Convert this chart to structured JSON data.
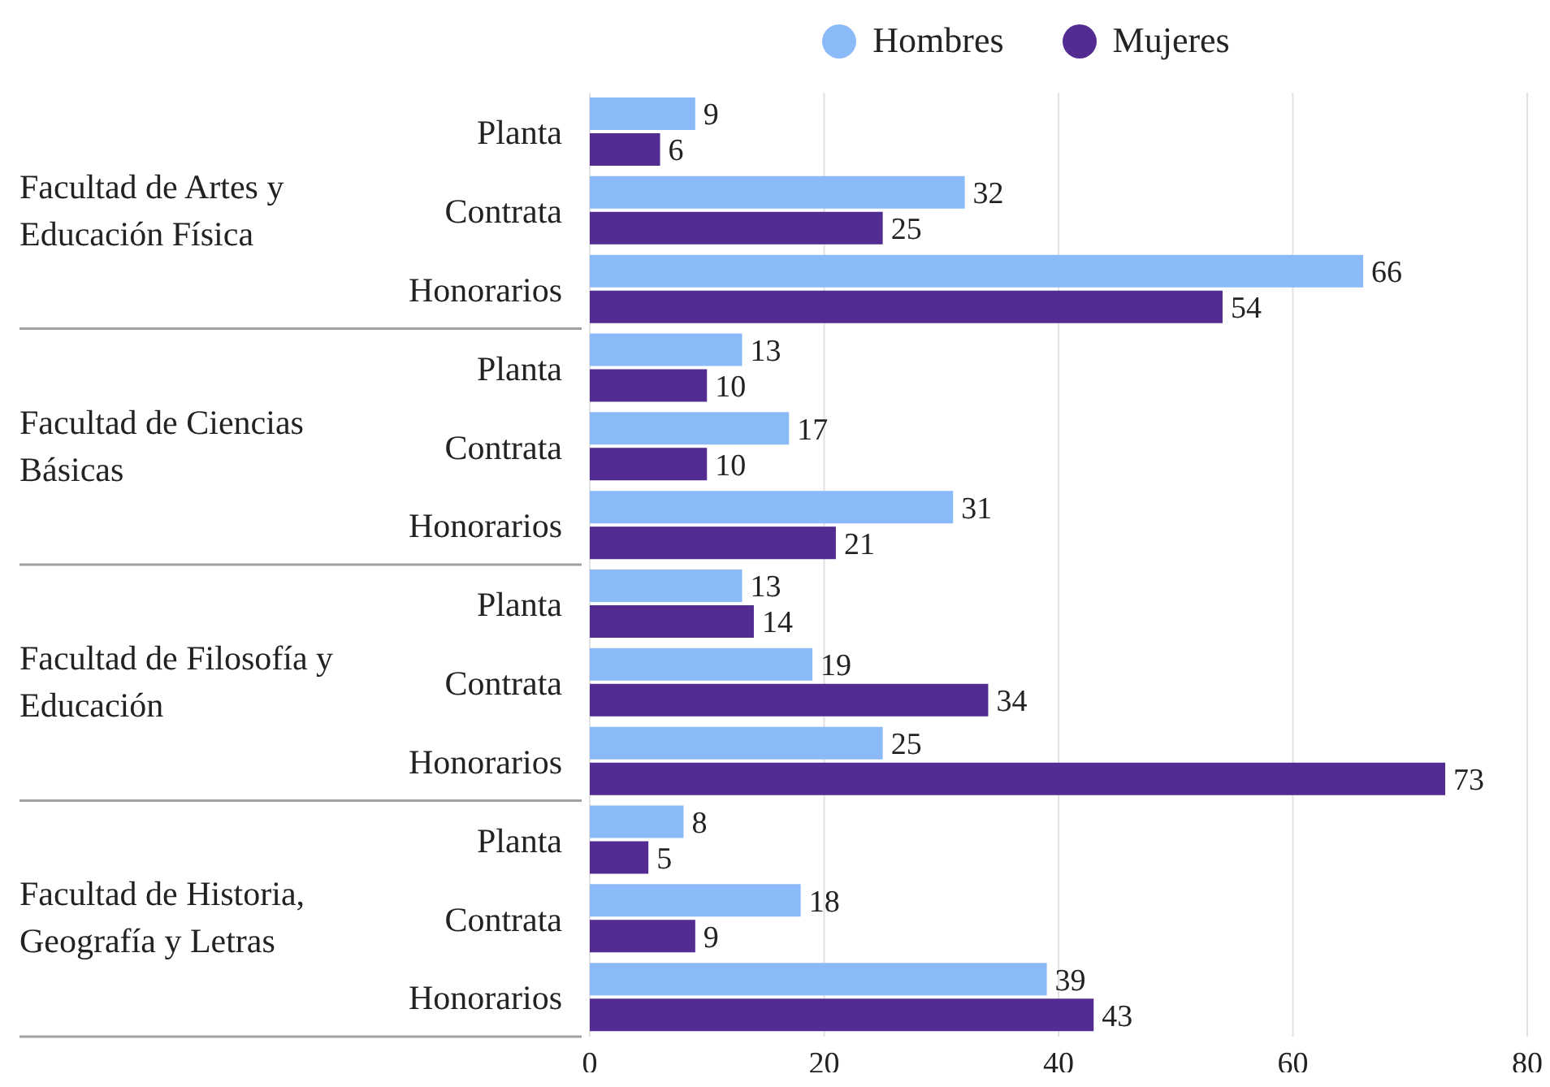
{
  "chart_data": {
    "type": "bar",
    "orientation": "horizontal",
    "categories": [
      "Planta",
      "Contrata",
      "Honorarios",
      "Planta",
      "Contrata",
      "Honorarios",
      "Planta",
      "Contrata",
      "Honorarios",
      "Planta",
      "Contrata",
      "Honorarios"
    ],
    "series": [
      {
        "name": "Hombres",
        "color": "#8bbaf8",
        "values": [
          9,
          32,
          66,
          13,
          17,
          31,
          13,
          19,
          25,
          8,
          18,
          39
        ]
      },
      {
        "name": "Mujeres",
        "color": "#522c91",
        "values": [
          6,
          25,
          54,
          10,
          10,
          21,
          14,
          34,
          73,
          5,
          9,
          43
        ]
      }
    ],
    "xlim": [
      0,
      80
    ],
    "xticks": [
      0,
      20,
      40,
      60,
      80
    ],
    "grid": "x",
    "legend": "top",
    "data_labels": true,
    "annotations": [
      "Facultad de Artes y Educación Física",
      "Facultad de Ciencias Básicas",
      "Facultad de Filosofía y Educación",
      "Facultad de Historia, Geografía y Letras"
    ]
  }
}
